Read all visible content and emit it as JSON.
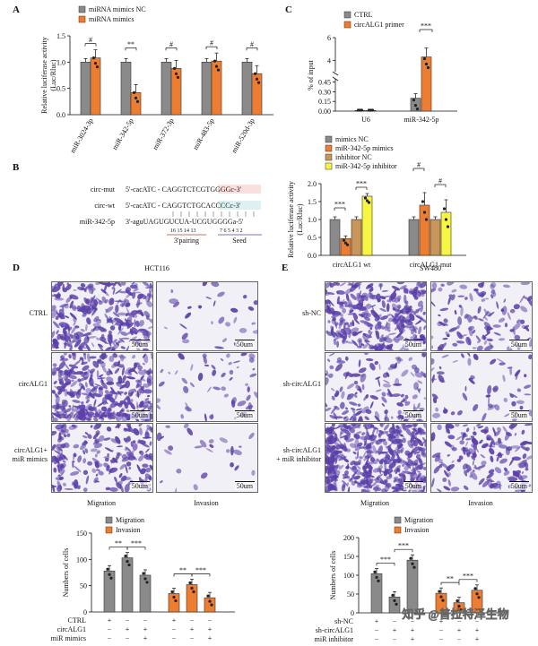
{
  "colors": {
    "gray": "#8a8a8a",
    "orange": "#ed7d31",
    "sand": "#c8955a",
    "yellow": "#f5f542",
    "purple": "#5a3fa8",
    "red": "#d93025",
    "teal": "#2a9d9b",
    "brown": "#a0522d"
  },
  "panelA": {
    "letter": "A",
    "legend": [
      "miRNA mimics NC",
      "miRNA mimics"
    ],
    "ylabel": "Relative luciferase activity\n(Luc/Rluc)",
    "sig": [
      "#",
      "**",
      "#",
      "#",
      "#"
    ]
  },
  "panelB": {
    "letter": "B",
    "rows": [
      {
        "label": "circ-mut",
        "seq": "5'-cacATC - CAGGTCTCGTGGGGc-3'"
      },
      {
        "label": "circ-wt",
        "seq": "5'-cacATC - CAGGTCTGCACCCCc-3'"
      },
      {
        "label": "miR-342-5p",
        "seq": "3'-aguUAGUGUCUA-UCGUGGGGa-5'"
      }
    ],
    "numbers_left": "16 15 14 13",
    "numbers_right": "7 6 5 4 3 2",
    "pairing_label": "3'pairing",
    "seed_label": "Seed"
  },
  "panelC": {
    "letter": "C",
    "legend": [
      "CTRL",
      "circALG1 primer"
    ],
    "ylabel": "% of input",
    "sig": "***"
  },
  "panelC2": {
    "legend": [
      "mimics NC",
      "miR-342-5p mimics",
      "inhibitor NC",
      "miR-342-5p inhibitor"
    ],
    "ylabel": "Relative luciferase activity\n(Luc/Rluc)",
    "sig": [
      "***",
      "***",
      "#",
      "#"
    ]
  },
  "panelD": {
    "letter": "D",
    "title": "HCT116",
    "rows": [
      "CTRL",
      "circALG1",
      "circALG1+\nmiR mimics"
    ],
    "cols": [
      "Migration",
      "Invasion"
    ],
    "scale": "50um",
    "legend": [
      "Migration",
      "Invasion"
    ],
    "ylabel": "Numbers of cells",
    "sig": [
      "**",
      "***",
      "**",
      "***"
    ],
    "conditions": [
      {
        "label": "CTRL",
        "signs": [
          "+",
          "−",
          "−",
          "+",
          "−",
          "−"
        ]
      },
      {
        "label": "circALG1",
        "signs": [
          "−",
          "+",
          "+",
          "−",
          "+",
          "+"
        ]
      },
      {
        "label": "miR mimics",
        "signs": [
          "−",
          "−",
          "+",
          "−",
          "−",
          "+"
        ]
      }
    ]
  },
  "panelE": {
    "letter": "E",
    "title": "SW480",
    "rows": [
      "sh-NC",
      "sh-circALG1",
      "sh-circALG1\n+ miR inhibitor"
    ],
    "cols": [
      "Migration",
      "Invasion"
    ],
    "scale": "50um",
    "legend": [
      "Migration",
      "Invasion"
    ],
    "ylabel": "Numbers of cells",
    "sig": [
      "***",
      "***",
      "**",
      "***"
    ],
    "conditions": [
      {
        "label": "sh-NC",
        "signs": [
          "+",
          "−",
          "−",
          "+",
          "−",
          "−"
        ]
      },
      {
        "label": "sh-circALG1",
        "signs": [
          "−",
          "+",
          "+",
          "−",
          "+",
          "+"
        ]
      },
      {
        "label": "miR inhibitor",
        "signs": [
          "−",
          "−",
          "+",
          "−",
          "−",
          "+"
        ]
      }
    ]
  },
  "watermark": "知乎 @普拉特泽生物",
  "chart_data": [
    {
      "id": "A",
      "type": "bar",
      "categories": [
        "miR-3024-3p",
        "miR-342-5p",
        "miR-372-3p",
        "miR-483-5p",
        "miR-520d-3p"
      ],
      "series": [
        {
          "name": "miRNA mimics NC",
          "values": [
            1.0,
            1.0,
            1.0,
            1.0,
            1.0
          ]
        },
        {
          "name": "miRNA mimics",
          "values": [
            1.08,
            0.42,
            0.88,
            1.02,
            0.78
          ]
        }
      ],
      "ylim": [
        0,
        1.5
      ],
      "yticks": [
        0.0,
        0.5,
        1.0,
        1.5
      ]
    },
    {
      "id": "C_top",
      "type": "bar",
      "categories": [
        "U6",
        "miR-342-5p"
      ],
      "series": [
        {
          "name": "CTRL",
          "values": [
            0.01,
            0.2
          ]
        },
        {
          "name": "circALG1 primer",
          "values": [
            0.01,
            4.3
          ]
        }
      ],
      "ylim": [
        0,
        6
      ],
      "yticks": [
        0.0,
        0.15,
        0.3,
        0.45,
        4,
        6
      ],
      "axis_break": [
        0.5,
        3
      ]
    },
    {
      "id": "C_bottom",
      "type": "bar",
      "categories": [
        "circALG1 wt",
        "circALG1 mut"
      ],
      "series": [
        {
          "name": "mimics NC",
          "values": [
            1.0,
            1.0
          ]
        },
        {
          "name": "miR-342-5p mimics",
          "values": [
            0.47,
            1.4
          ]
        },
        {
          "name": "inhibitor NC",
          "values": [
            1.0,
            1.0
          ]
        },
        {
          "name": "miR-342-5p inhibitor",
          "values": [
            1.65,
            1.2
          ]
        }
      ],
      "ylim": [
        0,
        2.0
      ],
      "yticks": [
        0.0,
        0.5,
        1.0,
        1.5,
        2.0
      ]
    },
    {
      "id": "D_bar",
      "type": "bar",
      "groups": [
        "Migration",
        "Invasion"
      ],
      "values": [
        [
          78,
          103,
          70
        ],
        [
          35,
          52,
          27
        ]
      ],
      "ylim": [
        0,
        150
      ],
      "yticks": [
        0,
        50,
        100,
        150
      ]
    },
    {
      "id": "E_bar",
      "type": "bar",
      "groups": [
        "Migration",
        "Invasion"
      ],
      "values": [
        [
          104,
          42,
          140
        ],
        [
          52,
          27,
          60
        ]
      ],
      "ylim": [
        0,
        200
      ],
      "yticks": [
        0,
        50,
        100,
        150,
        200
      ]
    }
  ]
}
